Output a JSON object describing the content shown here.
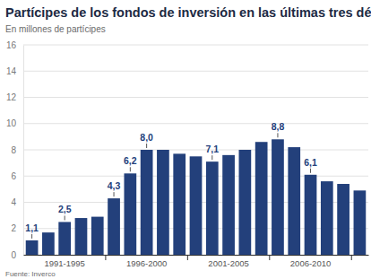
{
  "chart_data": {
    "type": "bar",
    "title": "Partícipes de los fondos de inversión en las últimas tres décadas",
    "subtitle": "En millones de partícipes",
    "source": "Fuente: Inverco",
    "categories": [
      null,
      null,
      "1991-1995",
      null,
      null,
      null,
      null,
      "1996-2000",
      null,
      null,
      null,
      null,
      "2001-2005",
      null,
      null,
      null,
      null,
      "2006-2010",
      null,
      null,
      null
    ],
    "values": [
      1.1,
      1.7,
      2.5,
      2.8,
      2.9,
      4.3,
      6.2,
      8.0,
      8.0,
      7.7,
      7.5,
      7.1,
      7.6,
      8.0,
      8.6,
      8.8,
      8.2,
      6.1,
      5.6,
      5.4,
      4.9
    ],
    "value_labels": [
      "1,1",
      null,
      "2,5",
      null,
      null,
      "4,3",
      "6,2",
      "8,0",
      null,
      null,
      null,
      "7,1",
      null,
      null,
      null,
      "8,8",
      null,
      "6,1",
      null,
      null,
      null
    ],
    "data_labels": true,
    "color": "#23407b",
    "ylim": [
      0,
      16
    ],
    "yticks": [
      0,
      2,
      4,
      6,
      8,
      10,
      12,
      14,
      16
    ],
    "grid": true
  }
}
